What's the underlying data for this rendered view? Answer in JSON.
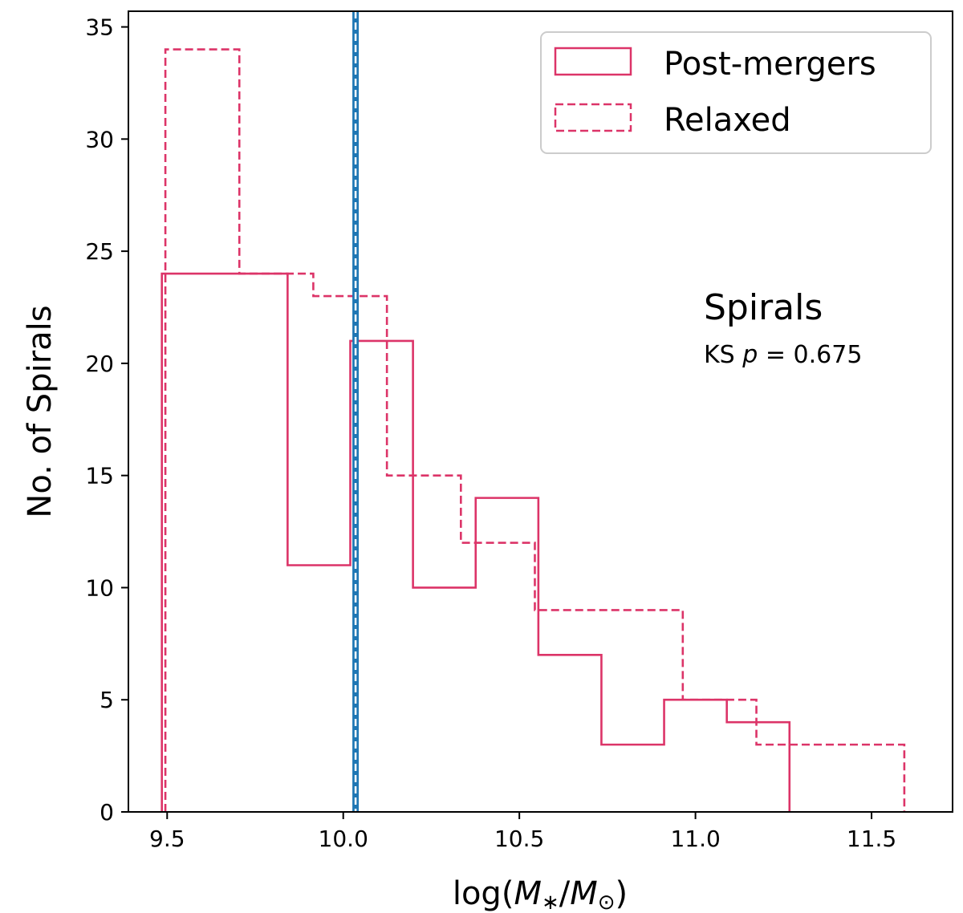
{
  "chart_data": {
    "type": "histogram",
    "xlabel_prefix": "log(",
    "xlabel_num": "M",
    "xlabel_num_sub": "∗",
    "xlabel_sep": "/",
    "xlabel_den": "M",
    "xlabel_den_sub": "⊙",
    "xlabel_suffix": ")",
    "ylabel": "No. of Spirals",
    "xlim": [
      9.39,
      11.73
    ],
    "ylim": [
      0,
      35.7
    ],
    "xticks": [
      "9.5",
      "10.0",
      "10.5",
      "11.0",
      "11.5"
    ],
    "yticks": [
      "0",
      "5",
      "10",
      "15",
      "20",
      "25",
      "30",
      "35"
    ],
    "grid": false,
    "legend_position": "top-right",
    "vline": {
      "x": 10.035,
      "color": "#1f77b4",
      "style": "solid+dashed-white"
    },
    "annotation": {
      "title": "Spirals",
      "sub_prefix": "KS ",
      "sub_var": "p",
      "sub_value": " = 0.675"
    },
    "series": [
      {
        "name": "Post-mergers",
        "style": "solid",
        "color": "#dc3468",
        "edges": [
          9.485,
          9.663,
          9.842,
          10.02,
          10.198,
          10.376,
          10.554,
          10.733,
          10.911,
          11.089,
          11.267
        ],
        "counts": [
          24,
          24,
          11,
          21,
          10,
          14,
          7,
          3,
          5,
          4
        ]
      },
      {
        "name": "Relaxed",
        "style": "dashed",
        "color": "#dc3468",
        "edges": [
          9.495,
          9.705,
          9.915,
          10.124,
          10.334,
          10.544,
          10.754,
          10.964,
          11.173,
          11.383,
          11.593
        ],
        "counts": [
          34,
          24,
          23,
          15,
          12,
          9,
          9,
          5,
          3,
          3
        ]
      }
    ]
  }
}
